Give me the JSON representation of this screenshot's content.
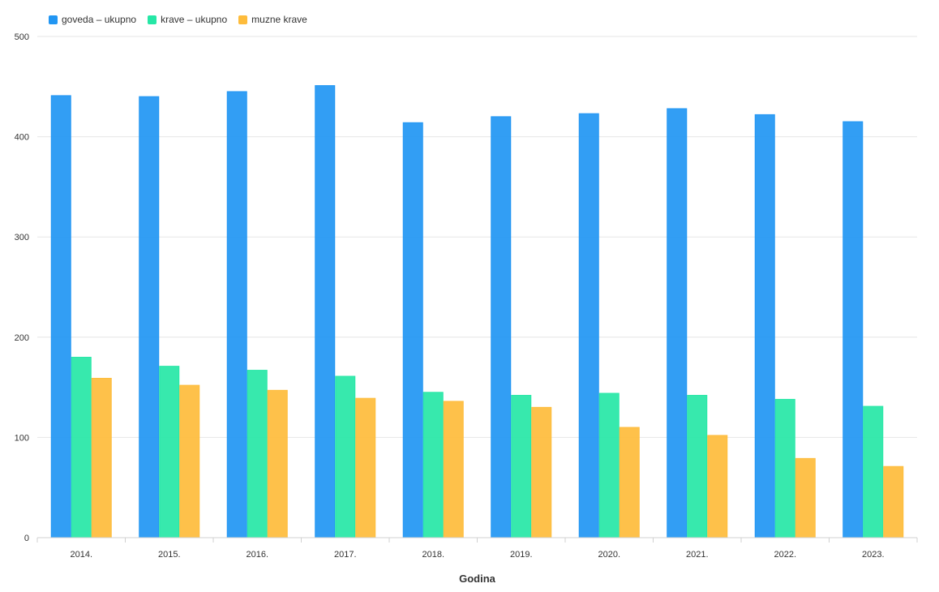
{
  "chart_data": {
    "type": "bar",
    "title": "",
    "xlabel": "Godina",
    "ylabel": "",
    "ylim": [
      0,
      500
    ],
    "yticks": [
      0,
      100,
      200,
      300,
      400,
      500
    ],
    "grid": true,
    "legend_position": "top-left",
    "categories": [
      "2014.",
      "2015.",
      "2016.",
      "2017.",
      "2018.",
      "2019.",
      "2020.",
      "2021.",
      "2022.",
      "2023."
    ],
    "series": [
      {
        "name": "goveda – ukupno",
        "color": "#2196F3",
        "values": [
          441,
          440,
          445,
          451,
          414,
          420,
          423,
          428,
          422,
          415
        ]
      },
      {
        "name": "krave – ukupno",
        "color": "#26E7A6",
        "values": [
          180,
          171,
          167,
          161,
          145,
          142,
          144,
          142,
          138,
          131
        ]
      },
      {
        "name": "muzne krave",
        "color": "#FEBC3B",
        "values": [
          159,
          152,
          147,
          139,
          136,
          130,
          110,
          102,
          79,
          71
        ]
      }
    ]
  }
}
